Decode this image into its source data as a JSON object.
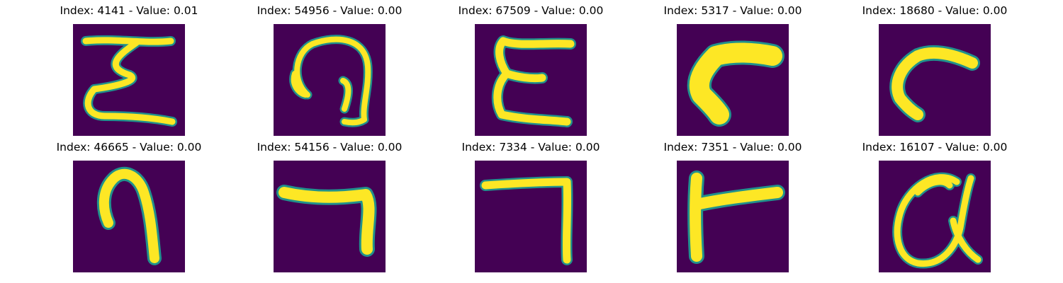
{
  "figure": {
    "background_color": "#440154",
    "stroke_color": "#fde725",
    "edge_color": "#21918c",
    "panels": [
      {
        "title": "Index: 4141 - Value: 0.01",
        "glyph": "sigma-like-z-shape"
      },
      {
        "title": "Index: 54956 - Value: 0.00",
        "glyph": "curled-loop-shape"
      },
      {
        "title": "Index: 67509 - Value: 0.00",
        "glyph": "letter-e-shape"
      },
      {
        "title": "Index: 5317 - Value: 0.00",
        "glyph": "thick-hook-shape"
      },
      {
        "title": "Index: 18680 - Value: 0.00",
        "glyph": "thin-hook-shape"
      },
      {
        "title": "Index: 46665 - Value: 0.00",
        "glyph": "arch-hook-shape"
      },
      {
        "title": "Index: 54156 - Value: 0.00",
        "glyph": "angled-seven-shape"
      },
      {
        "title": "Index: 7334 - Value: 0.00",
        "glyph": "right-angle-shape"
      },
      {
        "title": "Index: 7351 - Value: 0.00",
        "glyph": "t-bar-shape"
      },
      {
        "title": "Index: 16107 - Value: 0.00",
        "glyph": "looped-alpha-shape"
      }
    ]
  }
}
